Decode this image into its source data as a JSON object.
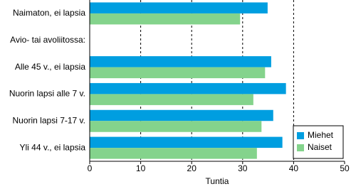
{
  "chart_data": {
    "type": "hbar",
    "categories": [
      "Naimaton, ei lapsia",
      "Avio- tai avoliitossa:",
      "Alle 45 v., ei lapsia",
      "Nuorin lapsi alle 7 v.",
      "Nuorin lapsi 7-17 v.",
      "Yli 44 v., ei lapsia"
    ],
    "series": [
      {
        "name": "Miehet",
        "color": "#009ee0",
        "values": [
          34.9,
          null,
          35.6,
          38.5,
          36.0,
          37.8
        ]
      },
      {
        "name": "Naiset",
        "color": "#84d38c",
        "values": [
          29.5,
          null,
          34.4,
          32.1,
          33.7,
          32.8
        ]
      }
    ],
    "xlabel": "Tuntia",
    "xlim": [
      0,
      50
    ],
    "xticks": [
      0,
      10,
      20,
      30,
      40,
      50
    ],
    "grid": true,
    "legend": "lower right"
  }
}
